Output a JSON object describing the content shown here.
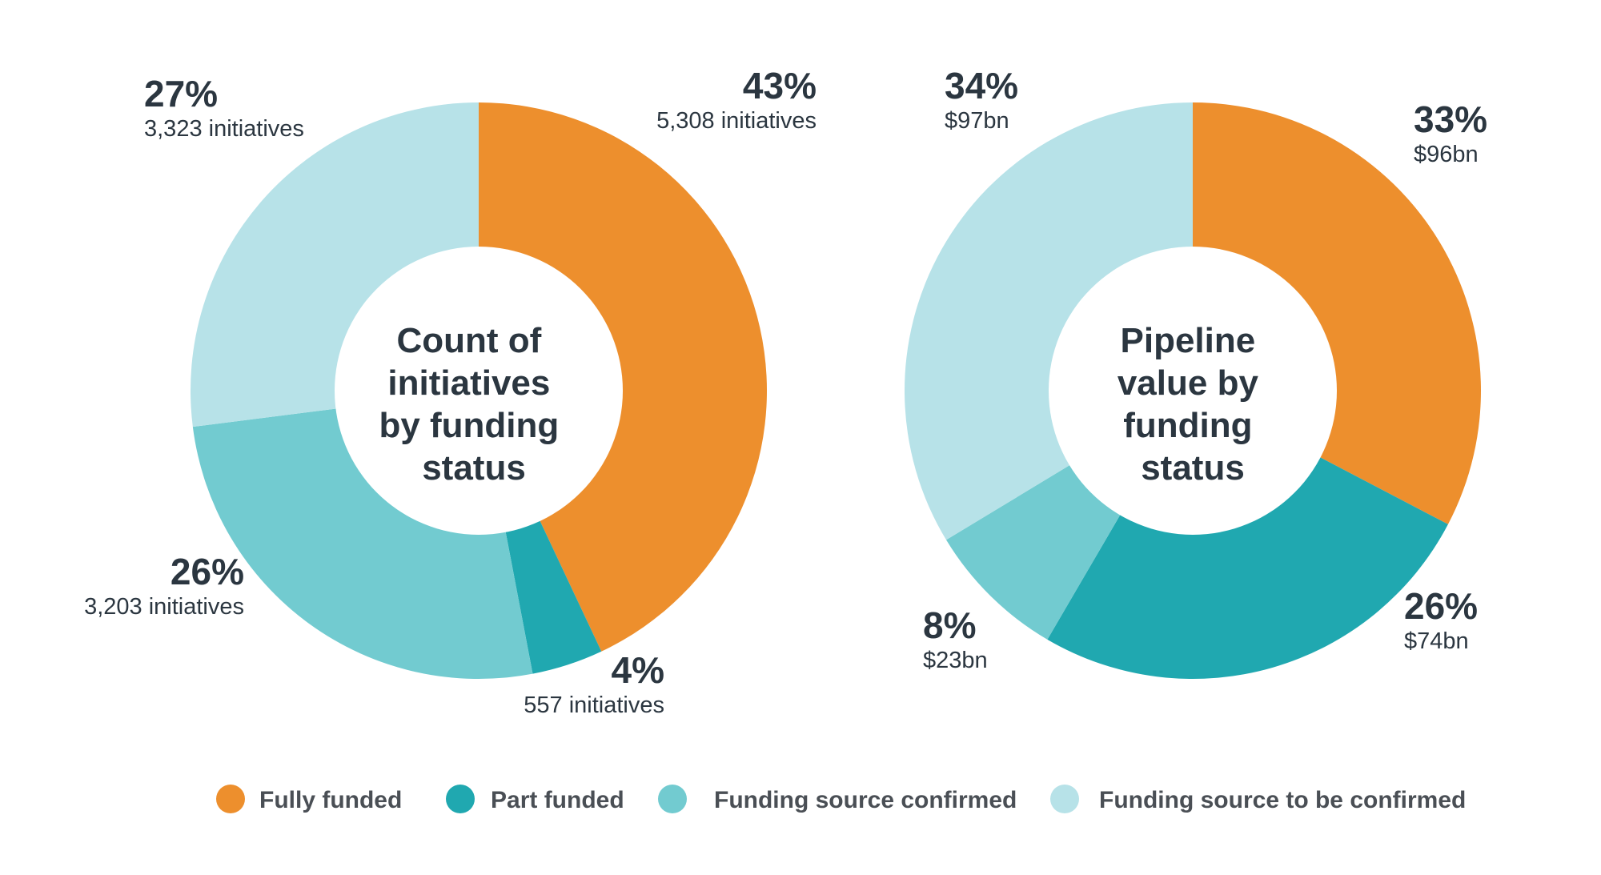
{
  "colors": {
    "fully_funded": "#ed8f2d",
    "part_funded": "#20a8b0",
    "source_confirmed": "#72cbd0",
    "source_tbc": "#b7e2e8"
  },
  "legend": [
    {
      "label": "Fully funded",
      "color": "#ed8f2d"
    },
    {
      "label": "Part funded",
      "color": "#20a8b0"
    },
    {
      "label": "Funding source confirmed",
      "color": "#72cbd0"
    },
    {
      "label": "Funding source to be confirmed",
      "color": "#b7e2e8"
    }
  ],
  "chart_data": [
    {
      "type": "pie",
      "title": "Count of initiatives by funding status",
      "title_lines": [
        "Count of",
        "initiatives",
        "by funding",
        "status"
      ],
      "categories": [
        "Fully funded",
        "Part funded",
        "Funding source confirmed",
        "Funding source to be confirmed"
      ],
      "values": [
        43,
        4,
        26,
        27
      ],
      "unit": "%",
      "labels": [
        {
          "pct": "43%",
          "sub": "5,308 initiatives"
        },
        {
          "pct": "4%",
          "sub": "557 initiatives"
        },
        {
          "pct": "26%",
          "sub": "3,203 initiatives"
        },
        {
          "pct": "27%",
          "sub": "3,323 initiatives"
        }
      ]
    },
    {
      "type": "pie",
      "title": "Pipeline value by funding status",
      "title_lines": [
        "Pipeline",
        "value by",
        "funding",
        "status"
      ],
      "categories": [
        "Fully funded",
        "Part funded",
        "Funding source confirmed",
        "Funding source to be confirmed"
      ],
      "values": [
        33,
        26,
        8,
        34
      ],
      "unit": "%",
      "labels": [
        {
          "pct": "33%",
          "sub": "$96bn"
        },
        {
          "pct": "26%",
          "sub": "$74bn"
        },
        {
          "pct": "8%",
          "sub": "$23bn"
        },
        {
          "pct": "34%",
          "sub": "$97bn"
        }
      ]
    }
  ]
}
